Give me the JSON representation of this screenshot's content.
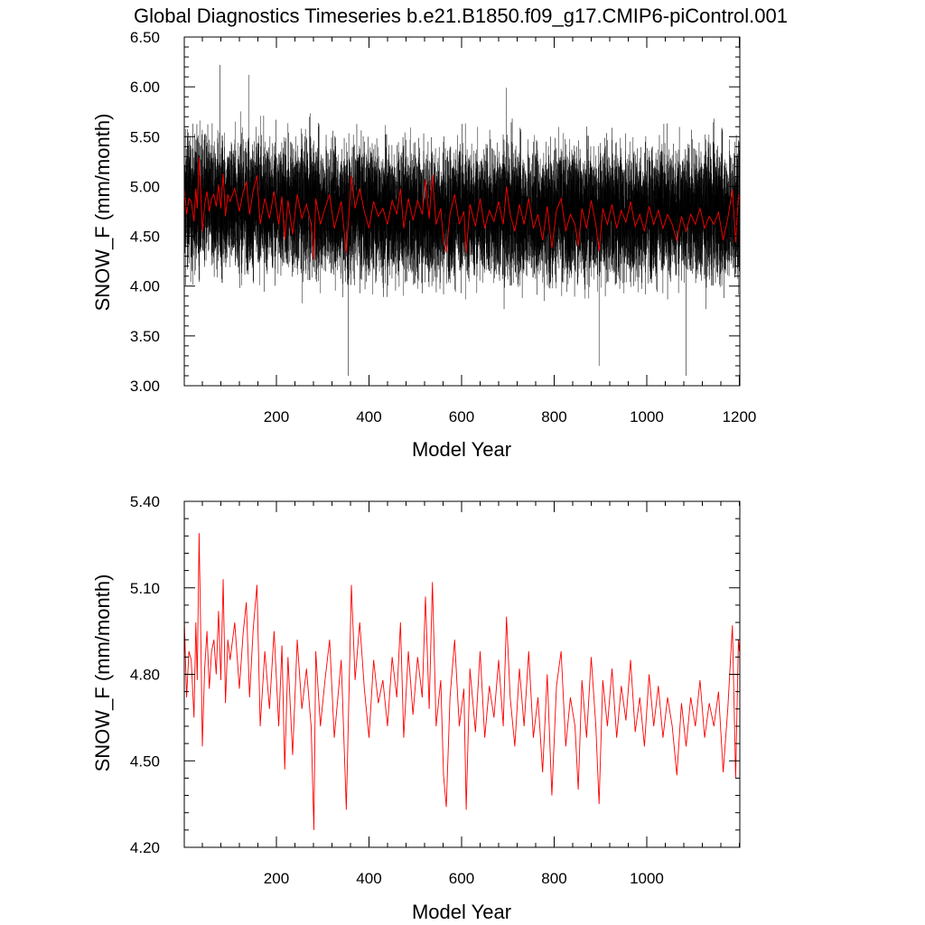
{
  "title": "Global Diagnostics Timeseries b.e21.B1850.f09_g17.CMIP6-piControl.001",
  "colors": {
    "monthly": "#000000",
    "annual": "#ff0000",
    "axis": "#000000"
  },
  "chart_data": [
    {
      "type": "line",
      "xlabel": "Model Year",
      "ylabel": "SNOW_F (mm/month)",
      "xlim": [
        1,
        1201
      ],
      "ylim": [
        3.0,
        6.5
      ],
      "xticks": [
        200,
        400,
        600,
        800,
        1000,
        1200
      ],
      "xtick_labels": [
        "200",
        "400",
        "600",
        "800",
        "1000",
        "1200"
      ],
      "yticks": [
        3.0,
        3.5,
        4.0,
        4.5,
        5.0,
        5.5,
        6.0,
        6.5
      ],
      "ytick_labels": [
        "3.00",
        "3.50",
        "4.00",
        "4.50",
        "5.00",
        "5.50",
        "6.00",
        "6.50"
      ],
      "grid": false,
      "series": [
        {
          "resolution": "monthly",
          "color": "#000000",
          "x_range": [
            1,
            1200
          ],
          "approx_mean": 4.73,
          "approx_min": 3.1,
          "approx_max": 6.22,
          "extreme_points": [
            [
              78,
              6.22
            ],
            [
              140,
              6.12
            ],
            [
              355,
              3.1
            ],
            [
              697,
              5.99
            ],
            [
              897,
              3.2
            ],
            [
              1085,
              3.1
            ]
          ]
        },
        {
          "resolution": "annual",
          "color": "#ff0000",
          "x_range": [
            1,
            1200
          ],
          "approx_range": [
            4.3,
            5.28
          ]
        }
      ]
    },
    {
      "type": "line",
      "xlabel": "Model Year",
      "ylabel": "SNOW_F (mm/month)",
      "xlim": [
        1,
        1201
      ],
      "ylim": [
        4.2,
        5.4
      ],
      "xticks": [
        200,
        400,
        600,
        800,
        1000
      ],
      "xtick_labels": [
        "200",
        "400",
        "600",
        "800",
        "1000"
      ],
      "yticks": [
        4.2,
        4.5,
        4.8,
        5.1,
        5.4
      ],
      "ytick_labels": [
        "4.20",
        "4.50",
        "4.80",
        "5.10",
        "5.40"
      ],
      "grid": false,
      "series": [
        {
          "resolution": "annual",
          "color": "#ff0000",
          "points": [
            [
              1,
              4.99
            ],
            [
              6,
              4.72
            ],
            [
              11,
              4.88
            ],
            [
              16,
              4.85
            ],
            [
              22,
              4.65
            ],
            [
              26,
              4.98
            ],
            [
              29,
              4.78
            ],
            [
              33,
              5.29
            ],
            [
              37,
              4.9
            ],
            [
              40,
              4.55
            ],
            [
              45,
              4.82
            ],
            [
              50,
              4.95
            ],
            [
              55,
              4.75
            ],
            [
              60,
              4.88
            ],
            [
              65,
              4.92
            ],
            [
              70,
              4.8
            ],
            [
              75,
              5.02
            ],
            [
              80,
              4.78
            ],
            [
              85,
              5.13
            ],
            [
              90,
              4.7
            ],
            [
              95,
              4.92
            ],
            [
              100,
              4.85
            ],
            [
              110,
              4.98
            ],
            [
              120,
              4.75
            ],
            [
              128,
              4.94
            ],
            [
              135,
              5.05
            ],
            [
              142,
              4.72
            ],
            [
              150,
              4.96
            ],
            [
              158,
              5.11
            ],
            [
              165,
              4.62
            ],
            [
              175,
              4.88
            ],
            [
              185,
              4.68
            ],
            [
              195,
              4.95
            ],
            [
              205,
              4.62
            ],
            [
              212,
              4.9
            ],
            [
              218,
              4.47
            ],
            [
              225,
              4.86
            ],
            [
              235,
              4.52
            ],
            [
              245,
              4.92
            ],
            [
              255,
              4.68
            ],
            [
              265,
              4.82
            ],
            [
              275,
              4.62
            ],
            [
              281,
              4.26
            ],
            [
              285,
              4.88
            ],
            [
              295,
              4.62
            ],
            [
              305,
              4.78
            ],
            [
              315,
              4.92
            ],
            [
              325,
              4.58
            ],
            [
              340,
              4.85
            ],
            [
              347,
              4.52
            ],
            [
              351,
              4.33
            ],
            [
              358,
              4.82
            ],
            [
              362,
              5.11
            ],
            [
              370,
              4.78
            ],
            [
              380,
              4.98
            ],
            [
              390,
              4.75
            ],
            [
              400,
              4.58
            ],
            [
              410,
              4.85
            ],
            [
              420,
              4.7
            ],
            [
              430,
              4.78
            ],
            [
              440,
              4.62
            ],
            [
              450,
              4.86
            ],
            [
              460,
              4.72
            ],
            [
              468,
              4.98
            ],
            [
              475,
              4.58
            ],
            [
              485,
              4.88
            ],
            [
              495,
              4.66
            ],
            [
              505,
              4.86
            ],
            [
              515,
              4.72
            ],
            [
              522,
              5.07
            ],
            [
              530,
              4.68
            ],
            [
              537,
              5.12
            ],
            [
              545,
              4.62
            ],
            [
              555,
              4.78
            ],
            [
              561,
              4.45
            ],
            [
              567,
              4.34
            ],
            [
              575,
              4.72
            ],
            [
              585,
              4.92
            ],
            [
              595,
              4.62
            ],
            [
              605,
              4.75
            ],
            [
              610,
              4.33
            ],
            [
              618,
              4.82
            ],
            [
              630,
              4.6
            ],
            [
              640,
              4.88
            ],
            [
              650,
              4.58
            ],
            [
              660,
              4.76
            ],
            [
              670,
              4.65
            ],
            [
              680,
              4.85
            ],
            [
              690,
              4.62
            ],
            [
              697,
              5.0
            ],
            [
              705,
              4.72
            ],
            [
              715,
              4.55
            ],
            [
              725,
              4.82
            ],
            [
              735,
              4.62
            ],
            [
              745,
              4.88
            ],
            [
              755,
              4.58
            ],
            [
              765,
              4.72
            ],
            [
              775,
              4.46
            ],
            [
              785,
              4.8
            ],
            [
              795,
              4.38
            ],
            [
              805,
              4.76
            ],
            [
              815,
              4.88
            ],
            [
              825,
              4.55
            ],
            [
              835,
              4.72
            ],
            [
              845,
              4.62
            ],
            [
              852,
              4.4
            ],
            [
              860,
              4.78
            ],
            [
              870,
              4.58
            ],
            [
              880,
              4.86
            ],
            [
              890,
              4.62
            ],
            [
              897,
              4.35
            ],
            [
              905,
              4.78
            ],
            [
              915,
              4.62
            ],
            [
              925,
              4.82
            ],
            [
              935,
              4.58
            ],
            [
              945,
              4.76
            ],
            [
              955,
              4.64
            ],
            [
              965,
              4.85
            ],
            [
              975,
              4.6
            ],
            [
              985,
              4.72
            ],
            [
              995,
              4.55
            ],
            [
              1005,
              4.8
            ],
            [
              1015,
              4.62
            ],
            [
              1025,
              4.76
            ],
            [
              1035,
              4.58
            ],
            [
              1045,
              4.72
            ],
            [
              1055,
              4.62
            ],
            [
              1065,
              4.45
            ],
            [
              1075,
              4.7
            ],
            [
              1085,
              4.55
            ],
            [
              1095,
              4.72
            ],
            [
              1105,
              4.62
            ],
            [
              1115,
              4.78
            ],
            [
              1125,
              4.58
            ],
            [
              1135,
              4.7
            ],
            [
              1145,
              4.62
            ],
            [
              1155,
              4.74
            ],
            [
              1165,
              4.46
            ],
            [
              1175,
              4.68
            ],
            [
              1185,
              4.97
            ],
            [
              1192,
              4.44
            ],
            [
              1198,
              4.92
            ],
            [
              1200,
              4.88
            ]
          ]
        }
      ]
    }
  ]
}
